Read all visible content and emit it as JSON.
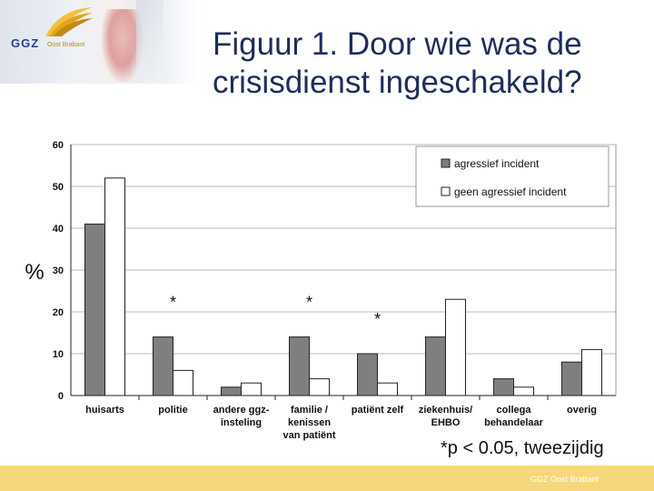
{
  "header": {
    "logo_text": "GGZ",
    "logo_sub": "Oost Brabant",
    "title_line1": "Figuur 1. Door wie was de",
    "title_line2": "crisisdienst ingeschakeld?"
  },
  "chart_data": {
    "type": "bar",
    "ylabel": "%",
    "ylim": [
      0,
      60
    ],
    "yticks": [
      "0",
      "10",
      "20",
      "30",
      "40",
      "50",
      "60"
    ],
    "categories": [
      [
        "huisarts"
      ],
      [
        "politie"
      ],
      [
        "andere ggz-",
        "insteling"
      ],
      [
        "familie /",
        "kenissen",
        "van patiënt"
      ],
      [
        "patiënt zelf"
      ],
      [
        "ziekenhuis/",
        "EHBO"
      ],
      [
        "collega",
        "behandelaar"
      ],
      [
        "overig"
      ]
    ],
    "series": [
      {
        "name": "agressief incident",
        "color": "#7f7f7f",
        "values": [
          41,
          14,
          2,
          14,
          10,
          14,
          4,
          8
        ]
      },
      {
        "name": "geen agressief incident",
        "color": "#ffffff",
        "values": [
          52,
          6,
          3,
          4,
          3,
          23,
          2,
          11
        ]
      }
    ],
    "significance_markers": [
      {
        "category_index": 1,
        "label": "*"
      },
      {
        "category_index": 3,
        "label": "*"
      },
      {
        "category_index": 4,
        "label": "*"
      }
    ],
    "legend": "top-right"
  },
  "footnote": "*p < 0.05, tweezijdig",
  "footer": "GGZ Oost Brabant"
}
